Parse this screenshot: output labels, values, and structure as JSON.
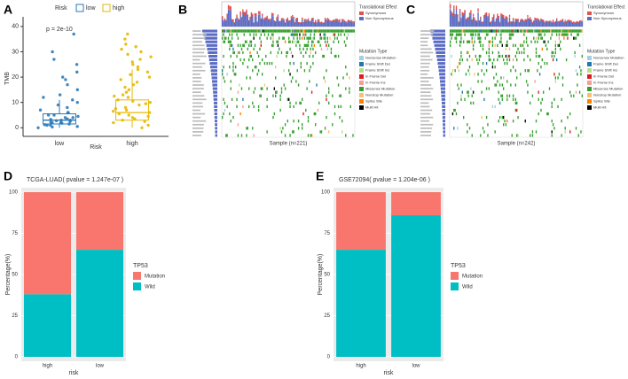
{
  "chart_data": [
    {
      "type": "boxplot",
      "panel": "A",
      "legend_title": "Risk",
      "annotation": "p = 2e-10",
      "ylabel": "TMB",
      "xlabel": "Risk",
      "categories": [
        "low",
        "high"
      ],
      "ylim": [
        -2,
        41
      ],
      "yticks": [
        0,
        10,
        20,
        30,
        40
      ],
      "series": [
        {
          "name": "low",
          "color": "#2a7ab9",
          "box": {
            "min": 0,
            "q1": 1.5,
            "median": 3,
            "q3": 5.5,
            "max": 11
          },
          "values": [
            0,
            0.5,
            1,
            1,
            1.5,
            2,
            2,
            2.5,
            3,
            3,
            3.5,
            4,
            4,
            5,
            5,
            6,
            6,
            7,
            8,
            9,
            10,
            11,
            12,
            13,
            15,
            17,
            19,
            20,
            22,
            25,
            27,
            30,
            37,
            0.3,
            1.2,
            2.2,
            2.8,
            3.3,
            4.5,
            1.8
          ]
        },
        {
          "name": "high",
          "color": "#e7b800",
          "box": {
            "min": 0,
            "q1": 3,
            "median": 6,
            "q3": 11,
            "max": 23
          },
          "values": [
            0,
            1,
            2,
            3,
            3.5,
            4,
            5,
            5.5,
            6,
            6.5,
            7,
            8,
            9,
            10,
            10.5,
            11,
            12,
            13,
            14,
            15,
            16,
            17,
            18,
            19,
            20,
            21,
            22,
            23,
            24,
            25,
            26,
            27,
            28,
            29,
            30,
            31,
            32,
            33,
            35,
            37,
            2.5,
            4.5,
            7.5,
            9.5,
            12.5
          ]
        }
      ]
    },
    {
      "type": "oncoplot",
      "panel": "B",
      "xlabel": "Sample (n=221)",
      "effect_title": "Translational Effect",
      "effects": [
        {
          "name": "Synonymous",
          "color": "#e4504a"
        },
        {
          "name": "Non Synonymous",
          "color": "#5b6cc4"
        }
      ],
      "mutation_title": "Mutation Type",
      "mutation_types": [
        {
          "name": "Nonsense Mutation",
          "color": "#a6cee3"
        },
        {
          "name": "Frame Shift Del",
          "color": "#1f78b4"
        },
        {
          "name": "Frame Shift Ins",
          "color": "#b2df8a"
        },
        {
          "name": "In Frame Del",
          "color": "#e31a1c"
        },
        {
          "name": "In Frame Ins",
          "color": "#fb9a99"
        },
        {
          "name": "Missense Mutation",
          "color": "#33a02c"
        },
        {
          "name": "Nonstop Mutation",
          "color": "#fdbf6f"
        },
        {
          "name": "Splice Site",
          "color": "#ff7f00"
        },
        {
          "name": "Multi Hit",
          "color": "#000000"
        }
      ]
    },
    {
      "type": "oncoplot",
      "panel": "C",
      "xlabel": "Sample (n=242)",
      "effect_title": "Translational Effect",
      "effects": [
        {
          "name": "Synonymous",
          "color": "#e4504a"
        },
        {
          "name": "Non Synonymous",
          "color": "#5b6cc4"
        }
      ],
      "mutation_title": "Mutation Type",
      "mutation_types": [
        {
          "name": "Nonsense Mutation",
          "color": "#a6cee3"
        },
        {
          "name": "Frame Shift Del",
          "color": "#1f78b4"
        },
        {
          "name": "Frame Shift Ins",
          "color": "#b2df8a"
        },
        {
          "name": "In Frame Del",
          "color": "#e31a1c"
        },
        {
          "name": "In Frame Ins",
          "color": "#fb9a99"
        },
        {
          "name": "Missense Mutation",
          "color": "#33a02c"
        },
        {
          "name": "Nonstop Mutation",
          "color": "#fdbf6f"
        },
        {
          "name": "Splice Site",
          "color": "#ff7f00"
        },
        {
          "name": "Multi Hit",
          "color": "#000000"
        }
      ]
    },
    {
      "type": "stacked_bar",
      "panel": "D",
      "title": "TCGA-LUAD( pvalue = 1.247e-07 )",
      "ylabel": "Percentage(%)",
      "xlabel": "risk",
      "legend_title": "TP53",
      "categories": [
        "high",
        "low"
      ],
      "ylim": [
        0,
        100
      ],
      "yticks": [
        0,
        25,
        50,
        75,
        100
      ],
      "series": [
        {
          "name": "Mutation",
          "color": "#f8766d",
          "values": [
            62,
            35
          ]
        },
        {
          "name": "Wild",
          "color": "#00bfc4",
          "values": [
            38,
            65
          ]
        }
      ]
    },
    {
      "type": "stacked_bar",
      "panel": "E",
      "title": "GSE72094( pvalue = 1.204e-06 )",
      "ylabel": "Percentage(%)",
      "xlabel": "risk",
      "legend_title": "TP53",
      "categories": [
        "high",
        "low"
      ],
      "ylim": [
        0,
        100
      ],
      "yticks": [
        0,
        25,
        50,
        75,
        100
      ],
      "series": [
        {
          "name": "Mutation",
          "color": "#f8766d",
          "values": [
            35,
            14
          ]
        },
        {
          "name": "Wild",
          "color": "#00bfc4",
          "values": [
            65,
            86
          ]
        }
      ]
    }
  ]
}
